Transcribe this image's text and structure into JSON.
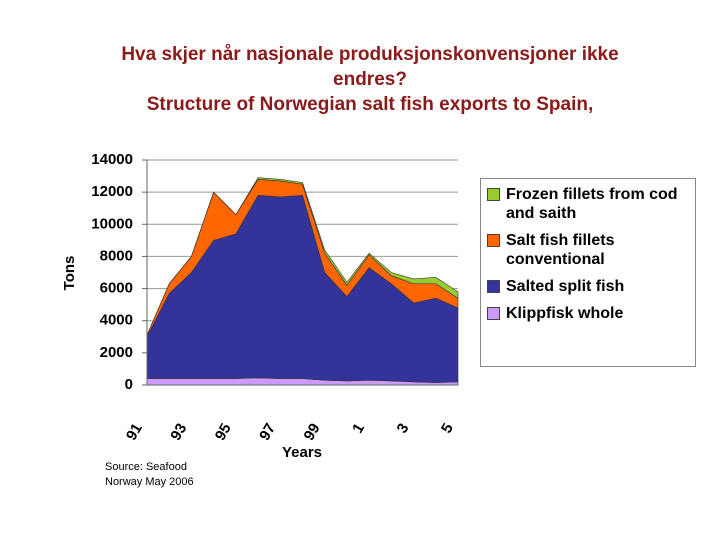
{
  "chart_data": {
    "type": "stacked-area",
    "title": "Hva skjer når nasjonale produksjonskonvensjoner ikke endres?",
    "subtitle": "Structure of Norwegian salt fish exports to Spain,",
    "y_label": "Tons",
    "x_label": "Years",
    "source": "Source: Seafood Norway May 2006",
    "categories": [
      "91",
      null,
      "93",
      null,
      "95",
      null,
      "97",
      null,
      "99",
      null,
      "1",
      null,
      "3",
      null,
      "5"
    ],
    "ylim": [
      0,
      14000
    ],
    "yticks": [
      0,
      2000,
      4000,
      6000,
      8000,
      10000,
      12000,
      14000
    ],
    "grid": true,
    "legend_position": "right",
    "series": [
      {
        "name": "Klippfisk whole",
        "color": "#cc99ff",
        "values": [
          400,
          400,
          400,
          400,
          400,
          450,
          400,
          400,
          300,
          250,
          300,
          250,
          200,
          150,
          200
        ]
      },
      {
        "name": "Salted split fish",
        "color": "#333399",
        "values": [
          2600,
          5300,
          6600,
          8600,
          9000,
          11350,
          11300,
          11400,
          6700,
          5250,
          7000,
          6050,
          4900,
          5250,
          4600
        ]
      },
      {
        "name": "Salt fish fillets conventional",
        "color": "#ff6600",
        "values": [
          100,
          600,
          1000,
          3000,
          1200,
          1000,
          1000,
          700,
          1200,
          700,
          800,
          500,
          1200,
          900,
          600
        ]
      },
      {
        "name": "Frozen fillets from cod and saith",
        "color": "#99cc33",
        "values": [
          0,
          0,
          0,
          0,
          0,
          100,
          100,
          100,
          200,
          200,
          100,
          200,
          300,
          400,
          400
        ]
      }
    ]
  }
}
